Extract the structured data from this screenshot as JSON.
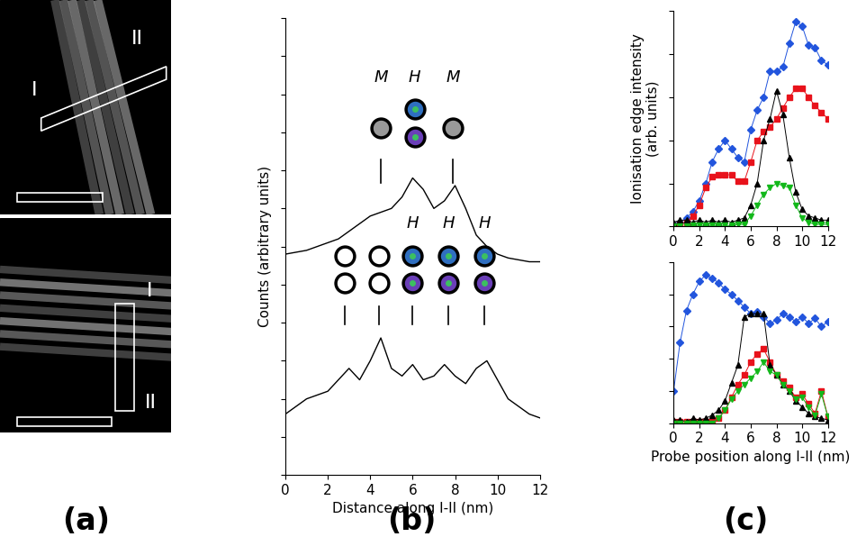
{
  "panel_labels": [
    "(a)",
    "(b)",
    "(c)"
  ],
  "images": [
    {
      "type": "image",
      "start_label": "I",
      "end_label": "II"
    },
    {
      "type": "image",
      "start_label": "I",
      "end_label": "II"
    }
  ],
  "chart_data": [
    {
      "type": "line",
      "xlabel": "Distance along I-II (nm)",
      "ylabel": "Counts (arbitrary units)",
      "xlim": [
        0,
        12
      ],
      "xticks": [
        0,
        2,
        4,
        6,
        8,
        10,
        12
      ],
      "ylim": [
        0,
        12
      ],
      "yticks": [
        0,
        1,
        2,
        3,
        4,
        5,
        6,
        7,
        8,
        9,
        10,
        11,
        12
      ],
      "tick_labels": "x",
      "x": [
        0,
        0.5,
        1,
        1.5,
        2,
        2.5,
        3,
        3.5,
        4,
        4.5,
        5,
        5.5,
        6,
        6.5,
        7,
        7.5,
        8,
        8.5,
        9,
        9.5,
        10,
        10.5,
        11,
        11.5,
        12
      ],
      "series": [
        {
          "color": "#000000",
          "line_style": "solid",
          "values": [
            5.8,
            5.85,
            5.9,
            6.0,
            6.1,
            6.2,
            6.4,
            6.6,
            6.8,
            6.9,
            7.0,
            7.3,
            7.8,
            7.5,
            7.0,
            7.2,
            7.6,
            7.0,
            6.3,
            6.0,
            5.8,
            5.7,
            5.65,
            5.6,
            5.6
          ],
          "sites": [
            {
              "x": 4.5,
              "label": "M",
              "tick": true
            },
            {
              "x": 6.1,
              "label": "H",
              "tick": false
            },
            {
              "x": 7.9,
              "label": "M",
              "tick": true
            }
          ]
        },
        {
          "color": "#000000",
          "line_style": "solid",
          "values": [
            1.6,
            1.8,
            2.0,
            2.1,
            2.2,
            2.5,
            2.8,
            2.5,
            3.0,
            3.6,
            2.8,
            2.6,
            2.9,
            2.5,
            2.6,
            2.9,
            2.6,
            2.4,
            2.8,
            3.0,
            2.5,
            2.0,
            1.8,
            1.6,
            1.5
          ],
          "sites": [
            {
              "x": 2.8,
              "label": null,
              "tick": true
            },
            {
              "x": 4.4,
              "label": null,
              "tick": true
            },
            {
              "x": 6.0,
              "label": "H",
              "tick": true
            },
            {
              "x": 7.7,
              "label": "H",
              "tick": true
            },
            {
              "x": 9.4,
              "label": "H",
              "tick": true
            }
          ]
        }
      ]
    },
    {
      "type": "line",
      "xlabel": null,
      "ylabel": "Ionisation edge intensity\n(arb. units)",
      "xlim": [
        0,
        12
      ],
      "xticks": [
        0,
        2,
        4,
        6,
        8,
        10,
        12
      ],
      "ylim": [
        0,
        10
      ],
      "yticks": [
        0,
        2,
        4,
        6,
        8,
        10
      ],
      "tick_labels": "x",
      "x": [
        0,
        0.5,
        1,
        1.5,
        2,
        2.5,
        3,
        3.5,
        4,
        4.5,
        5,
        5.5,
        6,
        6.5,
        7,
        7.5,
        8,
        8.5,
        9,
        9.5,
        10,
        10.5,
        11,
        11.5,
        12
      ],
      "series": [
        {
          "color": "#2255dd",
          "marker": "diamond",
          "line_style": "solid",
          "values": [
            0.1,
            0.2,
            0.4,
            0.7,
            1.2,
            2.0,
            3.0,
            3.6,
            4.0,
            3.6,
            3.2,
            3.0,
            4.5,
            5.4,
            6.0,
            7.2,
            7.2,
            7.4,
            8.5,
            9.5,
            9.3,
            8.4,
            8.3,
            7.7,
            7.5
          ]
        },
        {
          "color": "#e8121b",
          "marker": "square",
          "line_style": "solid",
          "values": [
            0.0,
            0.1,
            0.2,
            0.5,
            1.0,
            1.8,
            2.3,
            2.4,
            2.4,
            2.4,
            2.1,
            2.1,
            3.0,
            4.0,
            4.4,
            4.6,
            5.0,
            5.5,
            6.0,
            6.4,
            6.4,
            6.0,
            5.6,
            5.3,
            5.0
          ]
        },
        {
          "color": "#000000",
          "marker": "triangle_up",
          "line_style": "solid",
          "values": [
            0.2,
            0.3,
            0.3,
            0.2,
            0.3,
            0.2,
            0.3,
            0.2,
            0.3,
            0.2,
            0.3,
            0.4,
            1.0,
            2.0,
            4.0,
            5.0,
            6.3,
            5.2,
            3.2,
            1.6,
            0.8,
            0.5,
            0.4,
            0.3,
            0.3
          ]
        },
        {
          "color": "#12b81a",
          "marker": "triangle_down",
          "line_style": "solid",
          "values": [
            0.0,
            0.0,
            0.0,
            0.05,
            0.05,
            0.05,
            0.05,
            0.05,
            0.05,
            0.05,
            0.1,
            0.1,
            0.5,
            1.0,
            1.5,
            1.8,
            2.0,
            1.9,
            1.8,
            1.0,
            0.4,
            0.2,
            0.1,
            0.1,
            0.1
          ]
        }
      ]
    },
    {
      "type": "line",
      "xlabel": "Probe position along I-II (nm)",
      "ylabel": null,
      "xlim": [
        0,
        12
      ],
      "xticks": [
        0,
        2,
        4,
        6,
        8,
        10,
        12
      ],
      "ylim": [
        0,
        10
      ],
      "yticks": [
        0,
        2,
        4,
        6,
        8,
        10
      ],
      "tick_labels": "x",
      "x": [
        0,
        0.5,
        1,
        1.5,
        2,
        2.5,
        3,
        3.5,
        4,
        4.5,
        5,
        5.5,
        6,
        6.5,
        7,
        7.5,
        8,
        8.5,
        9,
        9.5,
        10,
        10.5,
        11,
        11.5,
        12
      ],
      "series": [
        {
          "color": "#2255dd",
          "marker": "diamond",
          "line_style": "solid",
          "values": [
            2.0,
            5.0,
            7.0,
            8.0,
            8.8,
            9.2,
            9.0,
            8.7,
            8.3,
            8.0,
            7.6,
            7.2,
            6.8,
            6.9,
            6.6,
            6.2,
            6.4,
            6.8,
            6.6,
            6.3,
            6.6,
            6.2,
            6.5,
            6.0,
            6.3
          ]
        },
        {
          "color": "#e8121b",
          "marker": "square",
          "line_style": "solid",
          "values": [
            0.1,
            0.1,
            0.1,
            0.1,
            0.1,
            0.1,
            0.1,
            0.3,
            0.8,
            1.6,
            2.4,
            3.0,
            3.8,
            4.3,
            4.6,
            3.8,
            3.0,
            2.6,
            2.2,
            1.6,
            1.8,
            1.2,
            0.6,
            2.0,
            0.4
          ]
        },
        {
          "color": "#000000",
          "marker": "triangle_up",
          "line_style": "solid",
          "values": [
            0.2,
            0.2,
            0.1,
            0.3,
            0.2,
            0.3,
            0.5,
            0.8,
            1.4,
            2.5,
            3.6,
            6.6,
            6.8,
            6.8,
            6.8,
            3.6,
            3.0,
            2.4,
            2.0,
            1.4,
            1.0,
            0.6,
            0.4,
            0.3,
            0.2
          ]
        },
        {
          "color": "#12b81a",
          "marker": "triangle_down",
          "line_style": "solid",
          "values": [
            0.0,
            0.0,
            0.0,
            0.0,
            0.0,
            0.0,
            0.0,
            0.3,
            0.8,
            1.5,
            2.0,
            2.4,
            2.8,
            3.2,
            3.8,
            3.2,
            3.0,
            2.4,
            2.0,
            1.5,
            1.6,
            1.0,
            0.5,
            1.8,
            0.4
          ]
        }
      ]
    }
  ]
}
